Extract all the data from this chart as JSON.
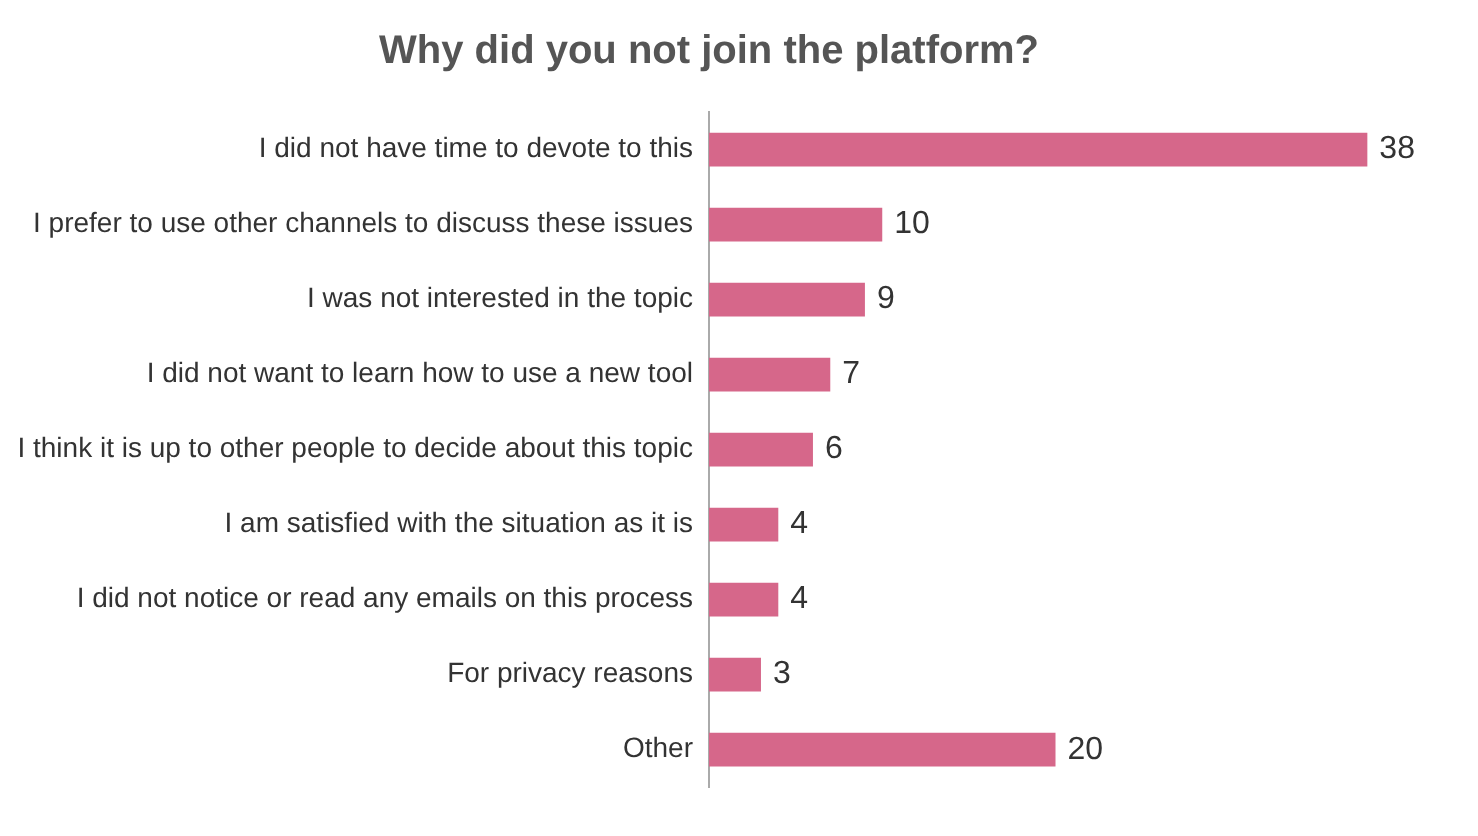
{
  "chart_data": {
    "type": "bar",
    "title": "Why did you not join the platform?",
    "orientation": "horizontal",
    "categories": [
      "I did not have time to devote to this",
      "I prefer to use other channels to discuss these issues",
      "I was not interested in the topic",
      "I did not want to learn how to use a new tool",
      "I think it is up to other people to decide about this topic",
      "I am satisfied with the situation as it is",
      "I did not notice or read any emails on this process",
      "For privacy reasons",
      "Other"
    ],
    "values": [
      38,
      10,
      9,
      7,
      6,
      4,
      4,
      3,
      20
    ],
    "color": "#d6678a",
    "data_labels": true,
    "grid": false,
    "legend": false
  }
}
